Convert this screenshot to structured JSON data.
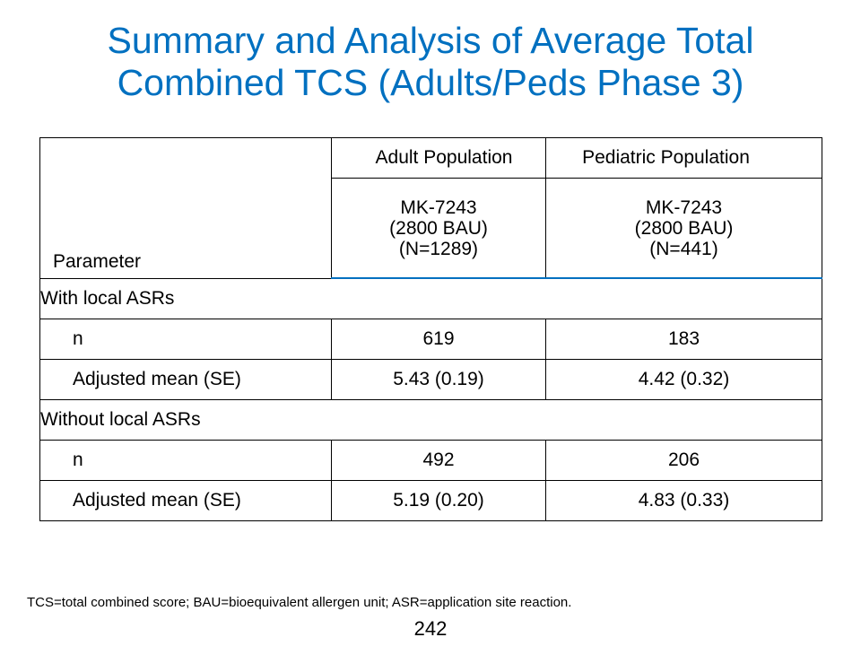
{
  "slide": {
    "title_line1": "Summary and Analysis of Average Total",
    "title_line2": "Combined TCS (Adults/Peds Phase 3)",
    "footnote": "TCS=total combined score; BAU=bioequivalent allergen unit; ASR=application site reaction.",
    "page_number": "242",
    "accent_color": "#0070c0"
  },
  "table": {
    "parameter_header": "Parameter",
    "populations": [
      "Adult Population",
      "Pediatric Population"
    ],
    "treatments": [
      {
        "name": "MK-7243",
        "dose": "(2800 BAU)",
        "n": "(N=1289)"
      },
      {
        "name": "MK-7243",
        "dose": "(2800 BAU)",
        "n": "(N=441)"
      }
    ],
    "sections": [
      {
        "label": "With local ASRs",
        "rows": [
          {
            "label": "n",
            "values": [
              "619",
              "183"
            ]
          },
          {
            "label": "Adjusted mean (SE)",
            "values": [
              "5.43 (0.19)",
              "4.42 (0.32)"
            ]
          }
        ]
      },
      {
        "label": "Without local ASRs",
        "rows": [
          {
            "label": "n",
            "values": [
              "492",
              "206"
            ]
          },
          {
            "label": "Adjusted mean (SE)",
            "values": [
              "5.19 (0.20)",
              "4.83 (0.33)"
            ]
          }
        ]
      }
    ]
  }
}
